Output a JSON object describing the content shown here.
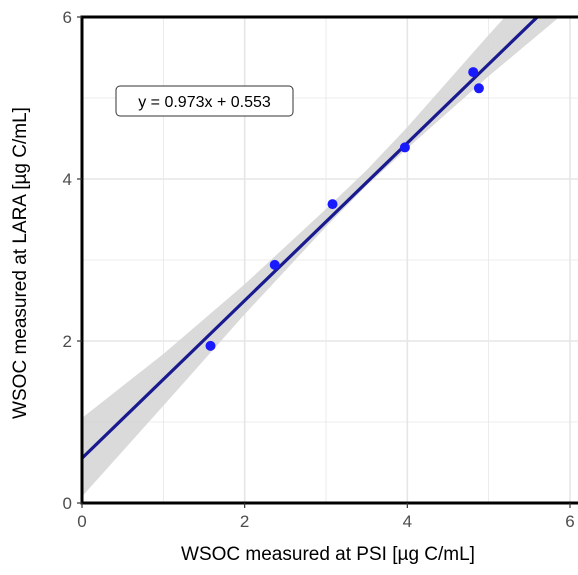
{
  "chart_data": {
    "type": "scatter",
    "xlabel": "WSOC measured at PSI [µg C/mL]",
    "ylabel": "WSOC measured at LARA [µg C/mL]",
    "xlim": [
      0,
      6
    ],
    "ylim": [
      0,
      6
    ],
    "x_ticks": [
      "0",
      "2",
      "4",
      "6"
    ],
    "y_ticks": [
      "0",
      "2",
      "4",
      "6"
    ],
    "points": [
      {
        "x": 1.58,
        "y": 1.94
      },
      {
        "x": 2.37,
        "y": 2.94
      },
      {
        "x": 3.08,
        "y": 3.69
      },
      {
        "x": 3.97,
        "y": 4.39
      },
      {
        "x": 4.81,
        "y": 5.32
      },
      {
        "x": 4.88,
        "y": 5.12
      }
    ],
    "fit": {
      "slope": 0.973,
      "intercept": 0.553,
      "equation": "y = 0.973x + 0.553",
      "confidence_band": {
        "x": [
          0.0,
          1.0,
          2.0,
          3.0,
          3.5,
          4.0,
          5.0,
          6.0
        ],
        "lower": [
          0.08,
          1.2,
          2.33,
          3.41,
          3.92,
          4.38,
          5.27,
          6.11
        ],
        "upper": [
          1.05,
          1.84,
          2.7,
          3.63,
          4.11,
          4.64,
          5.78,
          6.88
        ]
      }
    },
    "grid": true,
    "colors": {
      "points": "#1a1aff",
      "line": "#1a1a8f",
      "band": "#d3d3d3",
      "grid": "#e6e6e6",
      "frame": "#000000"
    }
  }
}
